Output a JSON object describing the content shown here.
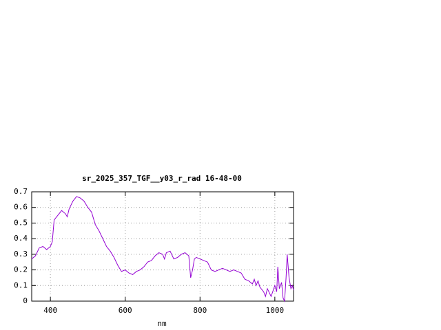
{
  "chart_data": {
    "type": "line",
    "title": "sr_2025_357_TGF__y03_r_rad 16-48-00",
    "x_label": "nm",
    "xlim": [
      350,
      1050
    ],
    "ylim": [
      0,
      0.7
    ],
    "xticks": [
      400,
      600,
      800,
      1000
    ],
    "yticks": [
      0,
      0.1,
      0.2,
      0.3,
      0.4,
      0.5,
      0.6,
      0.7
    ],
    "grid": true,
    "series": [
      {
        "color": "#9400d3",
        "x": [
          350,
          360,
          370,
          380,
          390,
          400,
          405,
          410,
          420,
          430,
          440,
          445,
          450,
          460,
          470,
          480,
          490,
          500,
          510,
          520,
          530,
          540,
          550,
          560,
          570,
          580,
          590,
          600,
          610,
          620,
          630,
          640,
          650,
          660,
          670,
          680,
          690,
          700,
          705,
          710,
          720,
          730,
          740,
          750,
          760,
          770,
          775,
          780,
          785,
          790,
          800,
          810,
          820,
          830,
          840,
          850,
          860,
          870,
          880,
          890,
          900,
          910,
          920,
          930,
          940,
          945,
          950,
          955,
          960,
          970,
          975,
          980,
          990,
          1000,
          1005,
          1008,
          1012,
          1018,
          1022,
          1026,
          1030,
          1033,
          1038,
          1043,
          1047,
          1050
        ],
        "values": [
          0.27,
          0.29,
          0.34,
          0.35,
          0.33,
          0.35,
          0.38,
          0.52,
          0.55,
          0.58,
          0.56,
          0.54,
          0.59,
          0.64,
          0.67,
          0.66,
          0.64,
          0.6,
          0.57,
          0.49,
          0.45,
          0.4,
          0.35,
          0.32,
          0.28,
          0.23,
          0.19,
          0.2,
          0.18,
          0.17,
          0.19,
          0.2,
          0.22,
          0.25,
          0.26,
          0.29,
          0.31,
          0.3,
          0.27,
          0.31,
          0.32,
          0.27,
          0.28,
          0.3,
          0.31,
          0.29,
          0.15,
          0.2,
          0.27,
          0.28,
          0.27,
          0.26,
          0.25,
          0.2,
          0.19,
          0.2,
          0.21,
          0.2,
          0.19,
          0.2,
          0.19,
          0.18,
          0.14,
          0.13,
          0.11,
          0.14,
          0.1,
          0.13,
          0.09,
          0.06,
          0.03,
          0.08,
          0.03,
          0.1,
          0.06,
          0.22,
          0.08,
          0.12,
          0.02,
          0.0,
          0.15,
          0.3,
          0.15,
          0.08,
          0.1,
          0.07
        ]
      }
    ]
  }
}
